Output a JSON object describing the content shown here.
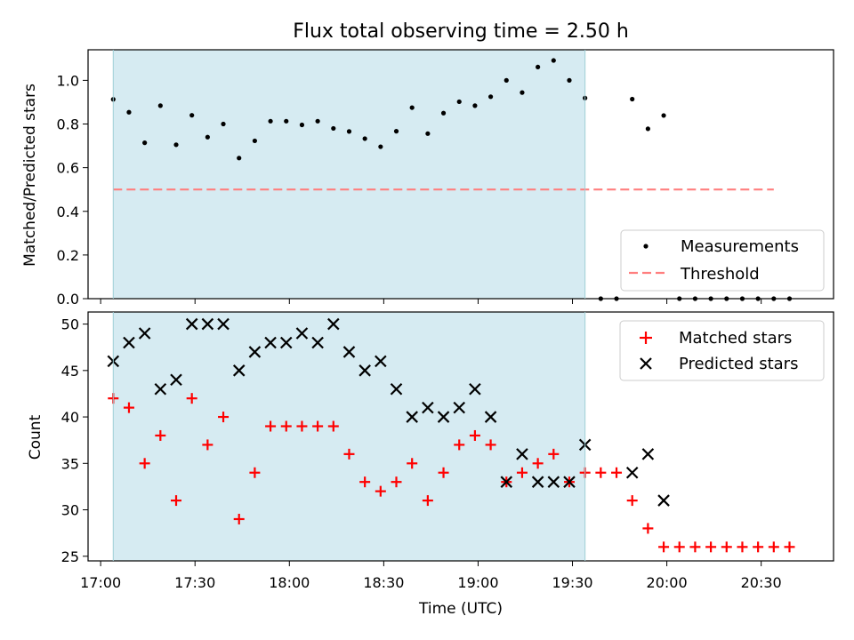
{
  "chart_data": [
    {
      "type": "scatter",
      "title": "Flux total observing time = 2.50 h",
      "ylabel": "Matched/Predicted stars",
      "ylim": [
        0,
        1.14
      ],
      "yticks": [
        0.0,
        0.2,
        0.4,
        0.6,
        0.8,
        1.0
      ],
      "yticklabels": [
        "0.0",
        "0.2",
        "0.4",
        "0.6",
        "0.8",
        "1.0"
      ],
      "shaded_interval": [
        "17:04",
        "19:34"
      ],
      "shade_color": "#add8e6",
      "legend": {
        "placement": "lower-right",
        "entries": [
          "Measurements",
          "Threshold"
        ]
      },
      "series": [
        {
          "name": "Measurements",
          "color": "#000000",
          "x": [
            "17:04",
            "17:09",
            "17:14",
            "17:19",
            "17:24",
            "17:29",
            "17:34",
            "17:39",
            "17:44",
            "17:49",
            "17:54",
            "17:59",
            "18:04",
            "18:09",
            "18:14",
            "18:19",
            "18:24",
            "18:29",
            "18:34",
            "18:39",
            "18:44",
            "18:49",
            "18:54",
            "18:59",
            "19:04",
            "19:09",
            "19:14",
            "19:19",
            "19:24",
            "19:29",
            "19:34",
            "19:39",
            "19:44",
            "19:49",
            "19:54",
            "19:59",
            "20:04",
            "20:09",
            "20:14",
            "20:19",
            "20:24",
            "20:29",
            "20:34",
            "20:39"
          ],
          "y": [
            0.913,
            0.854,
            0.714,
            0.884,
            0.705,
            0.84,
            0.74,
            0.8,
            0.644,
            0.723,
            0.813,
            0.813,
            0.796,
            0.813,
            0.78,
            0.766,
            0.733,
            0.696,
            0.767,
            0.875,
            0.756,
            0.85,
            0.902,
            0.884,
            0.925,
            1.0,
            0.944,
            1.061,
            1.091,
            1.0,
            0.919,
            0.0,
            0.0,
            0.914,
            0.778,
            0.839,
            0.0,
            0.0,
            0.0,
            0.0,
            0.0,
            0.0,
            0.0,
            0.0
          ]
        },
        {
          "name": "Threshold",
          "color": "#ff7f7f",
          "style": "dashed",
          "x": [
            "17:04",
            "20:34"
          ],
          "y": [
            0.5,
            0.5
          ]
        }
      ]
    },
    {
      "type": "scatter",
      "xlabel": "Time (UTC)",
      "ylabel": "Count",
      "ylim": [
        24.5,
        51.3
      ],
      "yticks": [
        25,
        30,
        35,
        40,
        45,
        50
      ],
      "yticklabels": [
        "25",
        "30",
        "35",
        "40",
        "45",
        "50"
      ],
      "xticks": [
        "17:00",
        "17:30",
        "18:00",
        "18:30",
        "19:00",
        "19:30",
        "20:00",
        "20:30"
      ],
      "xlim": [
        "16:56",
        "20:53"
      ],
      "shaded_interval": [
        "17:04",
        "19:34"
      ],
      "shade_color": "#add8e6",
      "legend": {
        "placement": "upper-right",
        "entries": [
          "Matched stars",
          "Predicted stars"
        ]
      },
      "series": [
        {
          "name": "Matched stars",
          "color": "#ff0000",
          "marker": "+",
          "x": [
            "17:04",
            "17:09",
            "17:14",
            "17:19",
            "17:24",
            "17:29",
            "17:34",
            "17:39",
            "17:44",
            "17:49",
            "17:54",
            "17:59",
            "18:04",
            "18:09",
            "18:14",
            "18:19",
            "18:24",
            "18:29",
            "18:34",
            "18:39",
            "18:44",
            "18:49",
            "18:54",
            "18:59",
            "19:04",
            "19:09",
            "19:14",
            "19:19",
            "19:24",
            "19:29",
            "19:34",
            "19:39",
            "19:44",
            "19:49",
            "19:54",
            "19:59",
            "20:04",
            "20:09",
            "20:14",
            "20:19",
            "20:24",
            "20:29",
            "20:34",
            "20:39"
          ],
          "y": [
            42,
            41,
            35,
            38,
            31,
            42,
            37,
            40,
            29,
            34,
            39,
            39,
            39,
            39,
            39,
            36,
            33,
            32,
            33,
            35,
            31,
            34,
            37,
            38,
            37,
            33,
            34,
            35,
            36,
            33,
            34,
            34,
            34,
            31,
            28,
            26,
            26,
            26,
            26,
            26,
            26,
            26,
            26,
            26
          ]
        },
        {
          "name": "Predicted stars",
          "color": "#000000",
          "marker": "x",
          "x": [
            "17:04",
            "17:09",
            "17:14",
            "17:19",
            "17:24",
            "17:29",
            "17:34",
            "17:39",
            "17:44",
            "17:49",
            "17:54",
            "17:59",
            "18:04",
            "18:09",
            "18:14",
            "18:19",
            "18:24",
            "18:29",
            "18:34",
            "18:39",
            "18:44",
            "18:49",
            "18:54",
            "18:59",
            "19:04",
            "19:09",
            "19:14",
            "19:19",
            "19:24",
            "19:29",
            "19:34",
            "19:49",
            "19:54",
            "19:59"
          ],
          "y": [
            46,
            48,
            49,
            43,
            44,
            50,
            50,
            50,
            45,
            47,
            48,
            48,
            49,
            48,
            50,
            47,
            45,
            46,
            43,
            40,
            41,
            40,
            41,
            43,
            40,
            33,
            36,
            33,
            33,
            33,
            37,
            34,
            36,
            31
          ]
        }
      ]
    }
  ]
}
